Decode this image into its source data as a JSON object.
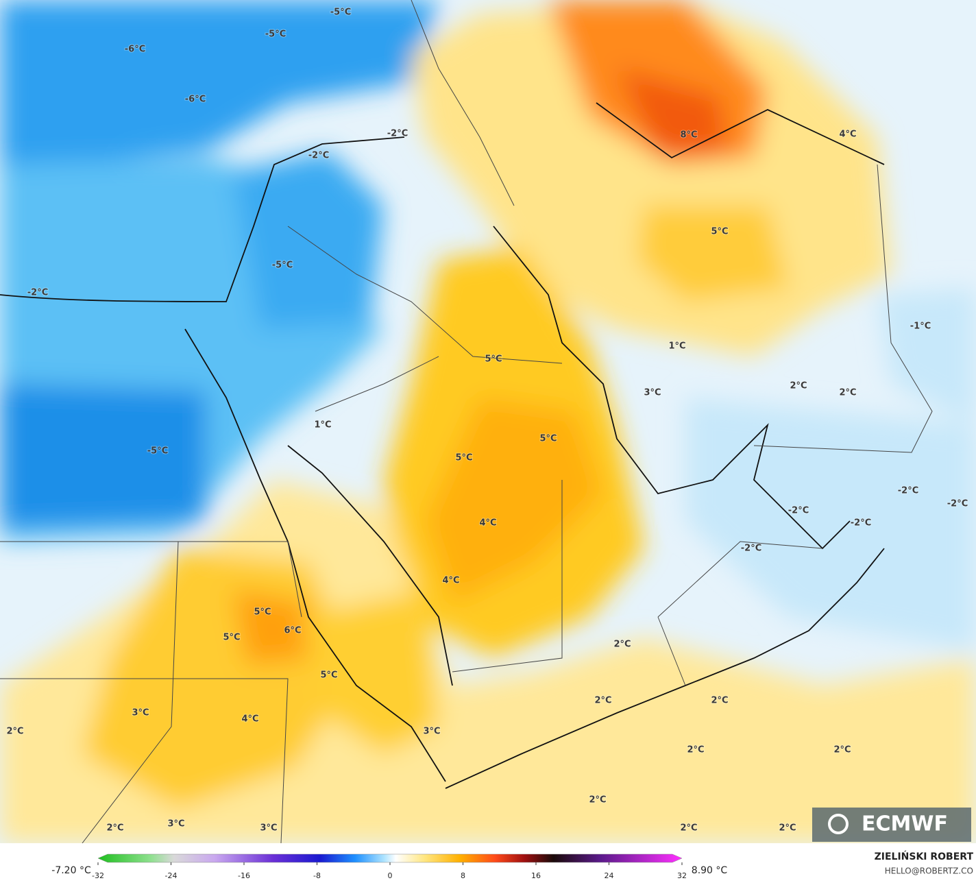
{
  "map": {
    "labels": [
      "-5°C",
      "-5°C",
      "-6°C",
      "-6°C",
      "-2°C",
      "-2°C",
      "8°C",
      "4°C",
      "5°C",
      "-5°C",
      "-2°C",
      "-1°C",
      "1°C",
      "5°C",
      "3°C",
      "2°C",
      "2°C",
      "1°C",
      "5°C",
      "5°C",
      "-5°C",
      "-2°C",
      "-2°C",
      "-2°C",
      "-2°C",
      "4°C",
      "-2°C",
      "4°C",
      "5°C",
      "6°C",
      "5°C",
      "2°C",
      "5°C",
      "2°C",
      "2°C",
      "3°C",
      "4°C",
      "2°C",
      "3°C",
      "2°C",
      "2°C",
      "2°C",
      "2°C",
      "3°C",
      "3°C",
      "2°C",
      "2°C"
    ],
    "logo": "ECMWF"
  },
  "colorbar": {
    "min_label": "-7.20 °C",
    "max_label": "8.90 °C",
    "ticks": [
      -32,
      -24,
      -16,
      -8,
      0,
      8,
      16,
      24,
      32
    ],
    "range": [
      -32,
      32
    ]
  },
  "credit": {
    "name": "ZIELIŃSKI ROBERT",
    "contact": "HELLO@ROBERTZ.CO"
  }
}
